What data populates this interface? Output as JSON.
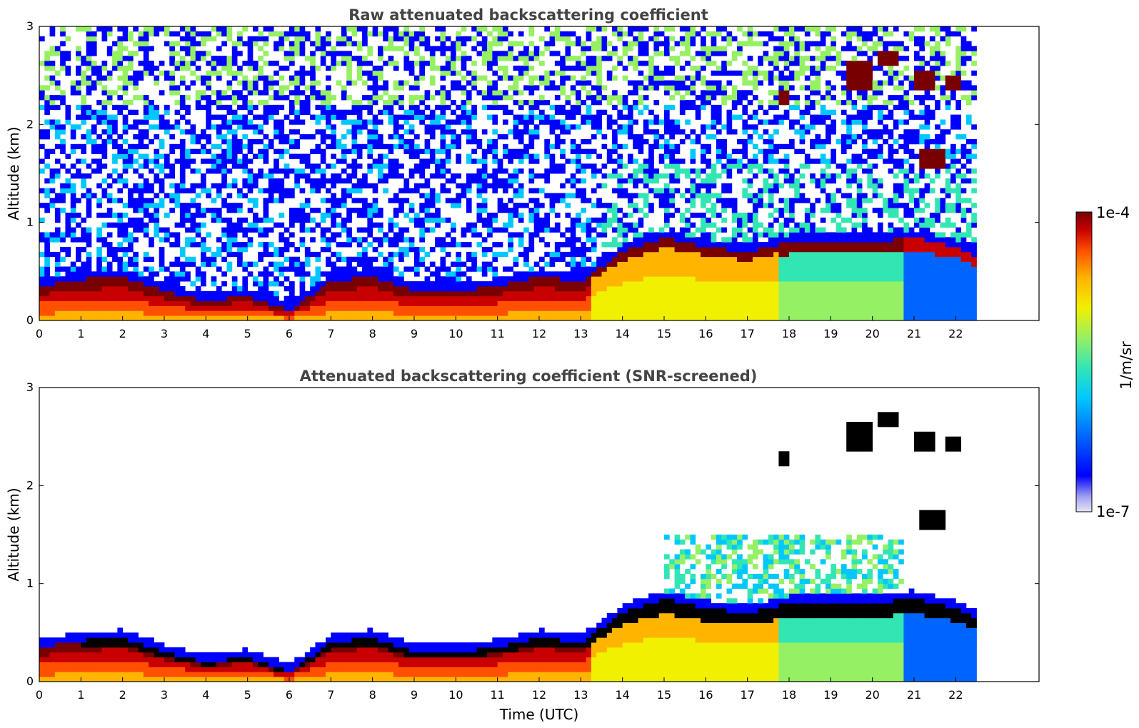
{
  "chart_data": [
    {
      "type": "heatmap",
      "title": "Raw attenuated backscattering coefficient",
      "xlabel": "",
      "ylabel": "Altitude (km)",
      "xlim": [
        0,
        24
      ],
      "ylim": [
        0,
        3
      ],
      "x_ticks": [
        "0",
        "1",
        "2",
        "3",
        "4",
        "5",
        "6",
        "7",
        "8",
        "9",
        "10",
        "11",
        "12",
        "13",
        "14",
        "15",
        "16",
        "17",
        "18",
        "19",
        "20",
        "21",
        "22"
      ],
      "y_ticks": [
        "0",
        "1",
        "2",
        "3"
      ],
      "data_extent_hours": 22.5,
      "boundary_layer_top_km": [
        [
          0,
          0.35
        ],
        [
          1,
          0.42
        ],
        [
          2,
          0.45
        ],
        [
          3,
          0.3
        ],
        [
          4,
          0.2
        ],
        [
          5,
          0.25
        ],
        [
          6,
          0.1
        ],
        [
          7,
          0.4
        ],
        [
          8,
          0.45
        ],
        [
          9,
          0.3
        ],
        [
          10,
          0.3
        ],
        [
          11,
          0.35
        ],
        [
          12,
          0.45
        ],
        [
          13,
          0.4
        ],
        [
          14,
          0.7
        ],
        [
          15,
          0.85
        ],
        [
          16,
          0.75
        ],
        [
          17,
          0.7
        ],
        [
          18,
          0.8
        ],
        [
          19,
          0.82
        ],
        [
          20,
          0.8
        ],
        [
          21,
          0.85
        ],
        [
          22,
          0.75
        ],
        [
          22.5,
          0.65
        ]
      ],
      "clouds": [
        {
          "t_start": 17.8,
          "t_end": 18.0,
          "z_start_km": 2.2,
          "z_end_km": 2.35
        },
        {
          "t_start": 19.4,
          "t_end": 20.0,
          "z_start_km": 2.35,
          "z_end_km": 2.65
        },
        {
          "t_start": 20.1,
          "t_end": 20.6,
          "z_start_km": 2.6,
          "z_end_km": 2.75
        },
        {
          "t_start": 21.0,
          "t_end": 21.5,
          "z_start_km": 2.35,
          "z_end_km": 2.55
        },
        {
          "t_start": 21.8,
          "t_end": 22.1,
          "z_start_km": 2.35,
          "z_end_km": 2.5
        },
        {
          "t_start": 21.1,
          "t_end": 21.8,
          "z_start_km": 1.55,
          "z_end_km": 1.75
        }
      ]
    },
    {
      "type": "heatmap",
      "title": "Attenuated backscattering coefficient (SNR-screened)",
      "xlabel": "Time (UTC)",
      "ylabel": "Altitude (km)",
      "xlim": [
        0,
        24
      ],
      "ylim": [
        0,
        3
      ],
      "x_ticks": [
        "0",
        "1",
        "2",
        "3",
        "4",
        "5",
        "6",
        "7",
        "8",
        "9",
        "10",
        "11",
        "12",
        "13",
        "14",
        "15",
        "16",
        "17",
        "18",
        "19",
        "20",
        "21",
        "22"
      ],
      "y_ticks": [
        "0",
        "1",
        "2",
        "3"
      ],
      "data_extent_hours": 22.5
    }
  ],
  "colorbar": {
    "max_label": "1e-4",
    "min_label": "1e-7",
    "unit_label": "1/m/sr",
    "colormap": [
      "#e6e6f5",
      "#a0a0f0",
      "#0000ff",
      "#0064ff",
      "#00c8ff",
      "#32e6b4",
      "#96f064",
      "#f0f000",
      "#ffb400",
      "#ff5000",
      "#c80000",
      "#780000"
    ]
  }
}
